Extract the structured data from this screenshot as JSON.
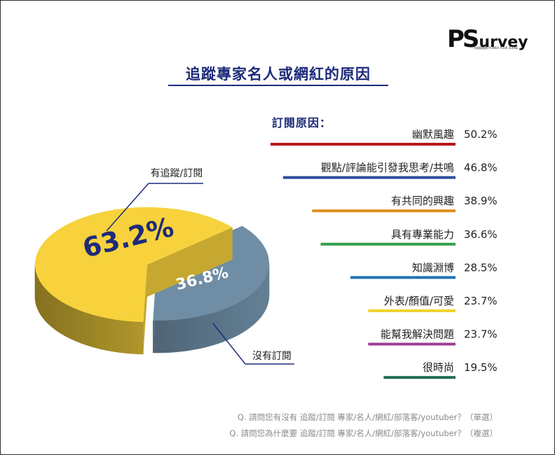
{
  "logo": {
    "main": "PS",
    "rest": "urvey",
    "sub": "市調調查網 POWER YOUR SCENE"
  },
  "title": "追蹤專家名人或網紅的原因",
  "reasons_heading": "訂閱原因：",
  "pie_labels": {
    "followed": "有追蹤/訂閱",
    "not_followed": "沒有訂閱"
  },
  "questions": [
    "Q. 請問您有沒有 追蹤/訂閱 專家/名人/網紅/部落客/youtuber？（單選）",
    "Q. 請問您為什麼要 追蹤/訂閱 專家/名人/網紅/部落客/youtuber？（複選）"
  ],
  "chart_data": [
    {
      "type": "pie",
      "categories": [
        "有追蹤/訂閱",
        "沒有訂閱"
      ],
      "values": [
        63.2,
        36.8
      ],
      "labels": [
        "63.2%",
        "36.8%"
      ],
      "colors": [
        "#f7d23c",
        "#6f8ea6"
      ]
    },
    {
      "type": "bar",
      "orientation": "horizontal",
      "title": "訂閱原因：",
      "categories": [
        "幽默風趣",
        "觀點/評論能引發我思考/共鳴",
        "有共同的興趣",
        "具有專業能力",
        "知識淵博",
        "外表/顏值/可愛",
        "能幫我解決問題",
        "很時尚"
      ],
      "values": [
        50.2,
        46.8,
        38.9,
        36.6,
        28.5,
        23.7,
        23.7,
        19.5
      ],
      "labels": [
        "50.2%",
        "46.8%",
        "38.9%",
        "36.6%",
        "28.5%",
        "23.7%",
        "23.7%",
        "19.5%"
      ],
      "colors": [
        "#b8151b",
        "#2c4ea0",
        "#de8f1d",
        "#35a04a",
        "#1f74b6",
        "#f2d22e",
        "#9c3f97",
        "#1d6b4e"
      ],
      "xlim": [
        0,
        50.2
      ]
    }
  ]
}
